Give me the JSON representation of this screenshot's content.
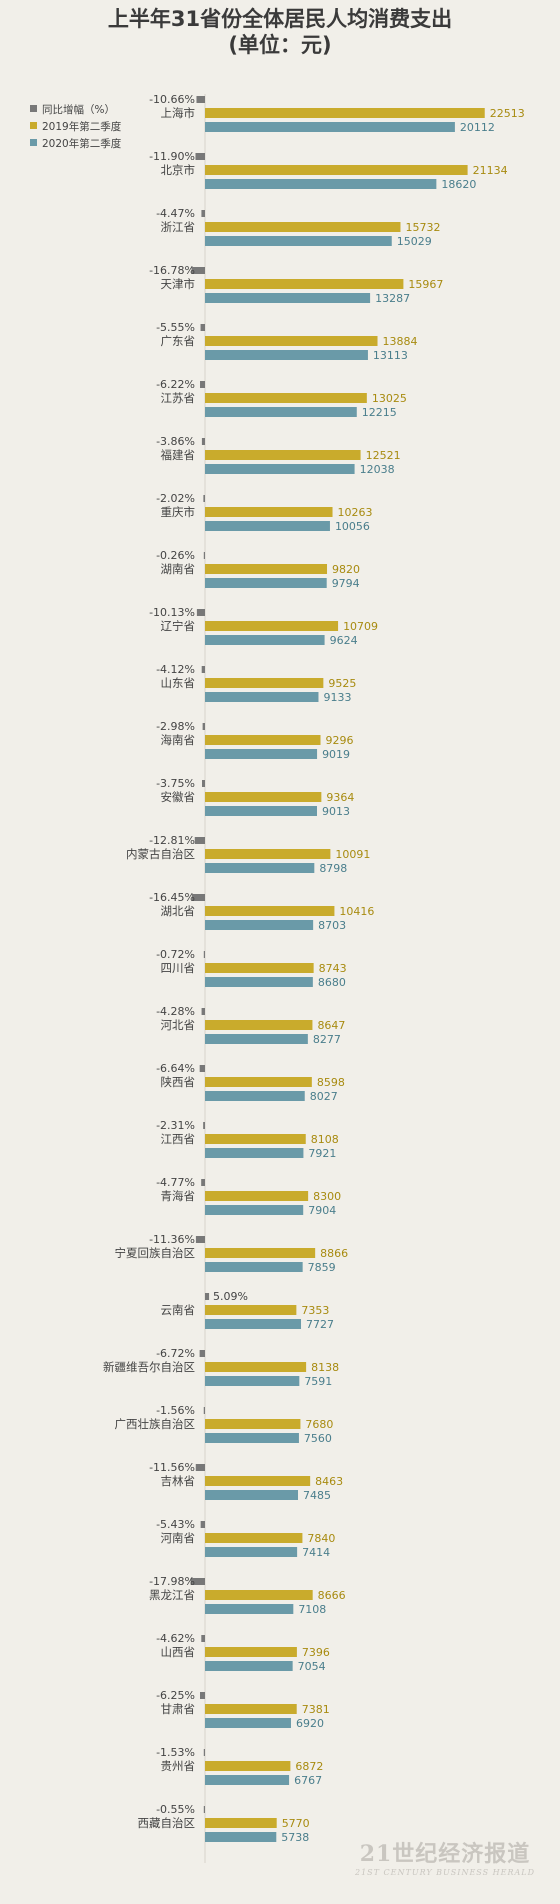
{
  "title": {
    "line1": "上半年31省份全体居民人均消费支出",
    "line2": "(单位：元)"
  },
  "colors": {
    "change": "#787878",
    "y2019": "#c9ab2c",
    "y2020": "#6a9aa8",
    "background": "#f1efe9",
    "value2019_text": "#a88b10",
    "value2020_text": "#4a7e8c"
  },
  "watermark": {
    "main": "21世纪经济报道",
    "sub": "21ST CENTURY BUSINESS HERALD"
  },
  "chart_data": {
    "type": "bar",
    "title": "上半年31省份全体居民人均消费支出 (单位：元)",
    "orientation": "horizontal",
    "legend": {
      "placement": "top-left",
      "entries": [
        "同比增幅（%）",
        "2019年第二季度",
        "2020年第二季度"
      ]
    },
    "grid": false,
    "categories": [
      "上海市",
      "北京市",
      "浙江省",
      "天津市",
      "广东省",
      "江苏省",
      "福建省",
      "重庆市",
      "湖南省",
      "辽宁省",
      "山东省",
      "海南省",
      "安徽省",
      "内蒙古自治区",
      "湖北省",
      "四川省",
      "河北省",
      "陕西省",
      "江西省",
      "青海省",
      "宁夏回族自治区",
      "云南省",
      "新疆维吾尔自治区",
      "广西壮族自治区",
      "吉林省",
      "河南省",
      "黑龙江省",
      "山西省",
      "甘肃省",
      "贵州省",
      "西藏自治区"
    ],
    "series": [
      {
        "name": "同比增幅（%）",
        "values": [
          "-10.66%",
          "-11.90%",
          "-4.47%",
          "-16.78%",
          "-5.55%",
          "-6.22%",
          "-3.86%",
          "-2.02%",
          "-0.26%",
          "-10.13%",
          "-4.12%",
          "-2.98%",
          "-3.75%",
          "-12.81%",
          "-16.45%",
          "-0.72%",
          "-4.28%",
          "-6.64%",
          "-2.31%",
          "-4.77%",
          "-11.36%",
          "5.09%",
          "-6.72%",
          "-1.56%",
          "-11.56%",
          "-5.43%",
          "-17.98%",
          "-4.62%",
          "-6.25%",
          "-1.53%",
          "-0.55%"
        ]
      },
      {
        "name": "2019年第二季度",
        "values": [
          22513,
          21134,
          15732,
          15967,
          13884,
          13025,
          12521,
          10263,
          9820,
          10709,
          9525,
          9296,
          9364,
          10091,
          10416,
          8743,
          8647,
          8598,
          8108,
          8300,
          8866,
          7353,
          8138,
          7680,
          8463,
          7840,
          8666,
          7396,
          7381,
          6872,
          5770
        ]
      },
      {
        "name": "2020年第二季度",
        "values": [
          20112,
          18620,
          15029,
          13287,
          13113,
          12215,
          12038,
          10056,
          9794,
          9624,
          9133,
          9019,
          9013,
          8798,
          8703,
          8680,
          8277,
          8027,
          7921,
          7904,
          7859,
          7727,
          7591,
          7560,
          7485,
          7414,
          7108,
          7054,
          6920,
          6767,
          5738
        ]
      }
    ],
    "xlim": [
      0,
      23500
    ],
    "change_xlim": [
      -20,
      20
    ]
  }
}
